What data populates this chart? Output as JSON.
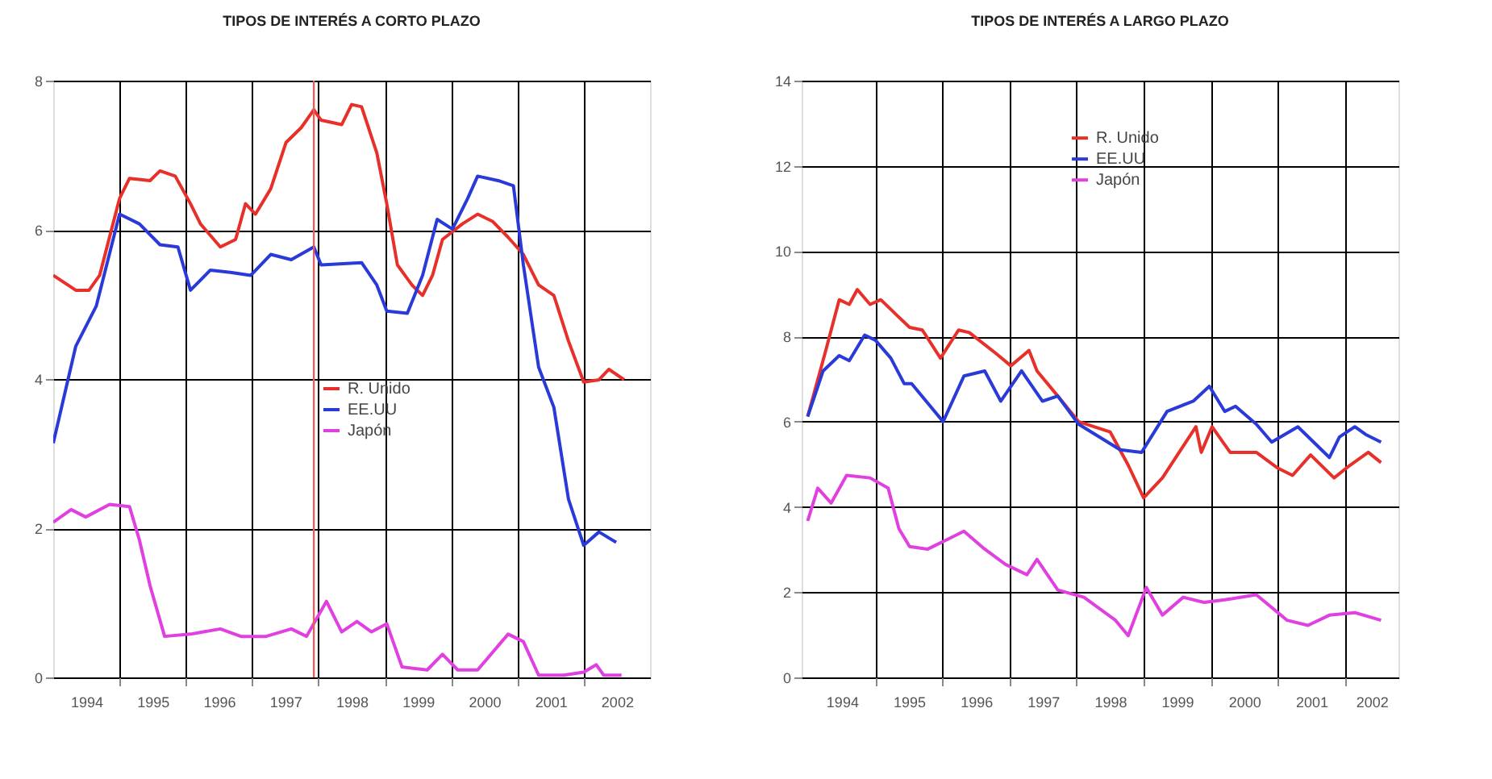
{
  "chart_data": [
    {
      "type": "line",
      "title": "TIPOS DE INTERÉS A CORTO PLAZO",
      "xlim": [
        1994,
        2003
      ],
      "ylim": [
        0,
        8
      ],
      "yticks": [
        0,
        2,
        4,
        6,
        8
      ],
      "xticks": [
        {
          "value": 1995,
          "label": null
        },
        {
          "value": 1996,
          "label": null
        },
        {
          "value": 1997,
          "label": null
        },
        {
          "value": 1998,
          "label": null
        },
        {
          "value": 1999,
          "label": null
        },
        {
          "value": 2000,
          "label": null
        },
        {
          "value": 2001,
          "label": null
        },
        {
          "value": 2002,
          "label": null
        },
        {
          "value": 1994.5,
          "label": "1994"
        },
        {
          "value": 1995.5,
          "label": "1995"
        },
        {
          "value": 1996.5,
          "label": "1996"
        },
        {
          "value": 1997.5,
          "label": "1997"
        },
        {
          "value": 1998.5,
          "label": "1998"
        },
        {
          "value": 1999.5,
          "label": "1999"
        },
        {
          "value": 2000.5,
          "label": "2000"
        },
        {
          "value": 2001.5,
          "label": "2001"
        },
        {
          "value": 2002.5,
          "label": "2002"
        }
      ],
      "grid": true,
      "legend": "center",
      "marker": "none",
      "ref_lines": [
        {
          "axis": "x",
          "value": 1997.93,
          "color": "#e06060"
        }
      ],
      "series": [
        {
          "name": "R. Unido",
          "color": "#e8302a",
          "x": [
            1994.0,
            1994.34,
            1994.54,
            1994.7,
            1995.0,
            1995.15,
            1995.46,
            1995.61,
            1995.84,
            1996.07,
            1996.22,
            1996.52,
            1996.75,
            1996.9,
            1997.05,
            1997.28,
            1997.51,
            1997.74,
            1997.93,
            1998.04,
            1998.35,
            1998.5,
            1998.65,
            1998.88,
            1999.03,
            1999.19,
            1999.41,
            1999.57,
            1999.72,
            1999.87,
            2000.17,
            2000.4,
            2000.63,
            2000.86,
            2001.09,
            2001.32,
            2001.55,
            2001.77,
            2002.0,
            2002.23,
            2002.38,
            2002.61
          ],
          "values": [
            5.39,
            5.19,
            5.19,
            5.39,
            6.42,
            6.69,
            6.66,
            6.79,
            6.72,
            6.35,
            6.08,
            5.77,
            5.87,
            6.35,
            6.21,
            6.55,
            7.17,
            7.37,
            7.61,
            7.47,
            7.41,
            7.68,
            7.65,
            7.03,
            6.35,
            5.53,
            5.26,
            5.12,
            5.39,
            5.87,
            6.08,
            6.21,
            6.11,
            5.9,
            5.67,
            5.26,
            5.12,
            4.51,
            3.96,
            3.99,
            4.13,
            3.99
          ]
        },
        {
          "name": "EE.UU",
          "color": "#2a3ad8",
          "x": [
            1994.0,
            1994.34,
            1994.65,
            1995.0,
            1995.3,
            1995.61,
            1995.88,
            1996.07,
            1996.37,
            1996.67,
            1996.98,
            1997.28,
            1997.59,
            1997.93,
            1998.04,
            1998.65,
            1998.88,
            1999.03,
            1999.34,
            1999.57,
            1999.79,
            2000.02,
            2000.25,
            2000.4,
            2000.71,
            2000.94,
            2001.09,
            2001.32,
            2001.55,
            2001.77,
            2002.0,
            2002.23,
            2002.49
          ],
          "values": [
            3.14,
            4.44,
            4.98,
            6.21,
            6.08,
            5.8,
            5.77,
            5.19,
            5.46,
            5.43,
            5.39,
            5.67,
            5.6,
            5.77,
            5.53,
            5.56,
            5.26,
            4.91,
            4.88,
            5.39,
            6.14,
            6.01,
            6.42,
            6.72,
            6.66,
            6.59,
            5.53,
            4.16,
            3.62,
            2.39,
            1.77,
            1.95,
            1.81
          ]
        },
        {
          "name": "Japón",
          "color": "#e040e0",
          "x": [
            1994.0,
            1994.27,
            1994.49,
            1994.85,
            1995.15,
            1995.3,
            1995.46,
            1995.68,
            1996.07,
            1996.52,
            1996.83,
            1997.21,
            1997.59,
            1997.82,
            1998.12,
            1998.35,
            1998.58,
            1998.8,
            1999.03,
            1999.26,
            1999.64,
            1999.87,
            2000.1,
            2000.4,
            2000.86,
            2001.09,
            2001.32,
            2001.7,
            2002.0,
            2002.19,
            2002.3,
            2002.57
          ],
          "values": [
            2.08,
            2.25,
            2.15,
            2.32,
            2.29,
            1.84,
            1.23,
            0.55,
            0.58,
            0.65,
            0.55,
            0.55,
            0.65,
            0.55,
            1.02,
            0.61,
            0.75,
            0.61,
            0.72,
            0.14,
            0.1,
            0.31,
            0.1,
            0.1,
            0.58,
            0.48,
            0.03,
            0.03,
            0.07,
            0.17,
            0.03,
            0.03
          ]
        }
      ]
    },
    {
      "type": "line",
      "title": "TIPOS DE INTERÉS A LARGO PLAZO",
      "xlim": [
        1993.9,
        2002.8
      ],
      "ylim": [
        0,
        14
      ],
      "yticks": [
        0,
        2,
        4,
        6,
        8,
        10,
        12,
        14
      ],
      "xticks": [
        {
          "value": 1995,
          "label": null
        },
        {
          "value": 1996,
          "label": null
        },
        {
          "value": 1997,
          "label": null
        },
        {
          "value": 1998,
          "label": null
        },
        {
          "value": 1999,
          "label": null
        },
        {
          "value": 2000,
          "label": null
        },
        {
          "value": 2001,
          "label": null
        },
        {
          "value": 2002,
          "label": null
        },
        {
          "value": 1994.5,
          "label": "1994"
        },
        {
          "value": 1995.5,
          "label": "1995"
        },
        {
          "value": 1996.5,
          "label": "1996"
        },
        {
          "value": 1997.5,
          "label": "1997"
        },
        {
          "value": 1998.5,
          "label": "1998"
        },
        {
          "value": 1999.5,
          "label": "1999"
        },
        {
          "value": 2000.5,
          "label": "2000"
        },
        {
          "value": 2001.5,
          "label": "2001"
        },
        {
          "value": 2002.4,
          "label": "2002"
        }
      ],
      "grid": true,
      "legend": "top",
      "marker": "none",
      "series": [
        {
          "name": "R. Unido",
          "color": "#e8302a",
          "x": [
            1993.99,
            1994.26,
            1994.46,
            1994.61,
            1994.73,
            1994.92,
            1995.08,
            1995.31,
            1995.51,
            1995.7,
            1995.97,
            1996.24,
            1996.4,
            1996.79,
            1997.02,
            1997.29,
            1997.41,
            1997.72,
            1998.03,
            1998.5,
            1998.77,
            1999.0,
            1999.28,
            1999.78,
            1999.86,
            2000.02,
            2000.29,
            2000.68,
            2000.99,
            2001.22,
            2001.49,
            2001.84,
            2002.08,
            2002.35,
            2002.54
          ],
          "values": [
            6.12,
            7.67,
            8.86,
            8.75,
            9.1,
            8.75,
            8.86,
            8.51,
            8.21,
            8.15,
            7.49,
            8.15,
            8.09,
            7.61,
            7.31,
            7.67,
            7.19,
            6.6,
            6.0,
            5.76,
            4.98,
            4.21,
            4.68,
            5.88,
            5.28,
            5.88,
            5.28,
            5.28,
            4.92,
            4.74,
            5.22,
            4.68,
            4.98,
            5.28,
            5.04
          ]
        },
        {
          "name": "EE.UU",
          "color": "#2a3ad8",
          "x": [
            1993.99,
            1994.22,
            1994.46,
            1994.61,
            1994.84,
            1995.0,
            1995.23,
            1995.43,
            1995.54,
            1996.01,
            1996.32,
            1996.63,
            1996.87,
            1997.18,
            1997.49,
            1997.72,
            1998.03,
            1998.65,
            1998.97,
            1999.35,
            1999.74,
            1999.98,
            2000.21,
            2000.37,
            2000.68,
            2000.91,
            2001.3,
            2001.77,
            2001.92,
            2002.15,
            2002.31,
            2002.54
          ],
          "values": [
            6.12,
            7.19,
            7.55,
            7.43,
            8.03,
            7.91,
            7.49,
            6.89,
            6.89,
            6.0,
            7.07,
            7.19,
            6.48,
            7.19,
            6.48,
            6.6,
            5.94,
            5.34,
            5.28,
            6.24,
            6.48,
            6.83,
            6.24,
            6.36,
            5.94,
            5.52,
            5.88,
            5.16,
            5.64,
            5.88,
            5.7,
            5.52
          ]
        },
        {
          "name": "Japón",
          "color": "#e040e0",
          "x": [
            1993.99,
            1994.14,
            1994.34,
            1994.57,
            1994.92,
            1995.19,
            1995.35,
            1995.51,
            1995.78,
            1996.09,
            1996.32,
            1996.63,
            1996.94,
            1997.26,
            1997.41,
            1997.72,
            1998.11,
            1998.58,
            1998.77,
            1999.04,
            1999.28,
            1999.59,
            1999.9,
            2000.21,
            2000.68,
            2001.14,
            2001.45,
            2001.77,
            2002.15,
            2002.54
          ],
          "values": [
            3.67,
            4.44,
            4.09,
            4.74,
            4.68,
            4.44,
            3.49,
            3.07,
            3.01,
            3.25,
            3.43,
            3.01,
            2.65,
            2.41,
            2.77,
            2.05,
            1.88,
            1.34,
            0.98,
            2.11,
            1.46,
            1.88,
            1.76,
            1.82,
            1.94,
            1.34,
            1.22,
            1.46,
            1.52,
            1.34
          ]
        }
      ]
    }
  ]
}
